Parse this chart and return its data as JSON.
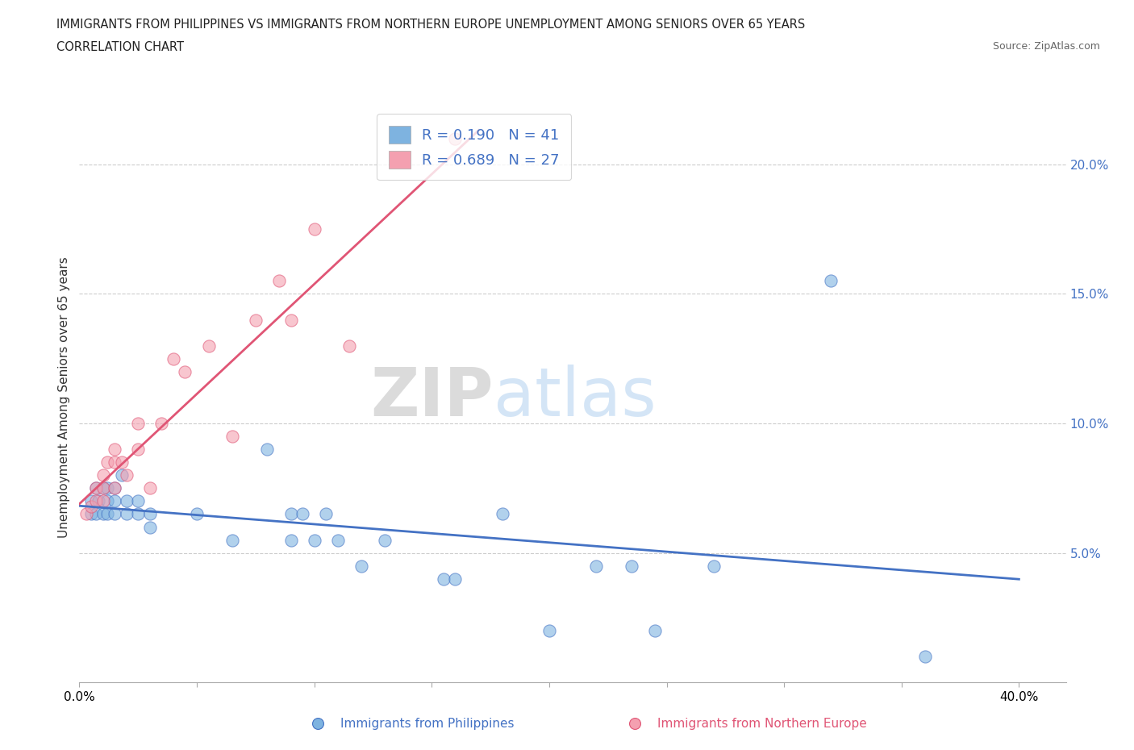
{
  "title_line1": "IMMIGRANTS FROM PHILIPPINES VS IMMIGRANTS FROM NORTHERN EUROPE UNEMPLOYMENT AMONG SENIORS OVER 65 YEARS",
  "title_line2": "CORRELATION CHART",
  "source": "Source: ZipAtlas.com",
  "ylabel": "Unemployment Among Seniors over 65 years",
  "xlim": [
    0.0,
    0.42
  ],
  "ylim": [
    0.0,
    0.22
  ],
  "xticks": [
    0.0,
    0.05,
    0.1,
    0.15,
    0.2,
    0.25,
    0.3,
    0.35,
    0.4
  ],
  "xticklabels": [
    "0.0%",
    "",
    "",
    "",
    "",
    "",
    "",
    "",
    "40.0%"
  ],
  "yticks_right": [
    0.05,
    0.1,
    0.15,
    0.2
  ],
  "yticklabels_right": [
    "5.0%",
    "10.0%",
    "15.0%",
    "20.0%"
  ],
  "r_philippines": 0.19,
  "n_philippines": 41,
  "r_northern_europe": 0.689,
  "n_northern_europe": 27,
  "color_philippines": "#7eb3e0",
  "color_northern_europe": "#f4a0b0",
  "color_philippines_line": "#4472c4",
  "color_northern_europe_line": "#e05575",
  "watermark_zip": "ZIP",
  "watermark_atlas": "atlas",
  "philippines_x": [
    0.005,
    0.005,
    0.007,
    0.007,
    0.008,
    0.01,
    0.01,
    0.012,
    0.012,
    0.012,
    0.015,
    0.015,
    0.015,
    0.018,
    0.02,
    0.02,
    0.025,
    0.025,
    0.03,
    0.03,
    0.05,
    0.065,
    0.08,
    0.09,
    0.09,
    0.095,
    0.1,
    0.105,
    0.11,
    0.12,
    0.13,
    0.155,
    0.16,
    0.18,
    0.2,
    0.22,
    0.235,
    0.245,
    0.27,
    0.32,
    0.36
  ],
  "philippines_y": [
    0.065,
    0.07,
    0.065,
    0.075,
    0.07,
    0.065,
    0.075,
    0.065,
    0.07,
    0.075,
    0.065,
    0.07,
    0.075,
    0.08,
    0.065,
    0.07,
    0.065,
    0.07,
    0.06,
    0.065,
    0.065,
    0.055,
    0.09,
    0.055,
    0.065,
    0.065,
    0.055,
    0.065,
    0.055,
    0.045,
    0.055,
    0.04,
    0.04,
    0.065,
    0.02,
    0.045,
    0.045,
    0.02,
    0.045,
    0.155,
    0.01
  ],
  "northern_europe_x": [
    0.003,
    0.005,
    0.007,
    0.007,
    0.01,
    0.01,
    0.01,
    0.012,
    0.015,
    0.015,
    0.015,
    0.018,
    0.02,
    0.025,
    0.025,
    0.03,
    0.035,
    0.04,
    0.045,
    0.055,
    0.065,
    0.075,
    0.085,
    0.09,
    0.1,
    0.115,
    0.16
  ],
  "northern_europe_y": [
    0.065,
    0.068,
    0.07,
    0.075,
    0.07,
    0.075,
    0.08,
    0.085,
    0.075,
    0.085,
    0.09,
    0.085,
    0.08,
    0.09,
    0.1,
    0.075,
    0.1,
    0.125,
    0.12,
    0.13,
    0.095,
    0.14,
    0.155,
    0.14,
    0.175,
    0.13,
    0.21
  ]
}
